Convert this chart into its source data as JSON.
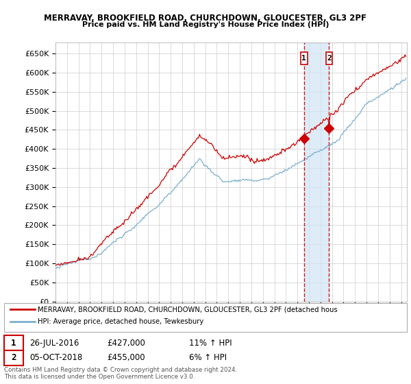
{
  "title": "MERRAVAY, BROOKFIELD ROAD, CHURCHDOWN, GLOUCESTER, GL3 2PF",
  "subtitle": "Price paid vs. HM Land Registry's House Price Index (HPI)",
  "ylim": [
    0,
    680000
  ],
  "yticks": [
    0,
    50000,
    100000,
    150000,
    200000,
    250000,
    300000,
    350000,
    400000,
    450000,
    500000,
    550000,
    600000,
    650000
  ],
  "ytick_labels": [
    "£0",
    "£50K",
    "£100K",
    "£150K",
    "£200K",
    "£250K",
    "£300K",
    "£350K",
    "£400K",
    "£450K",
    "£500K",
    "£550K",
    "£600K",
    "£650K"
  ],
  "xlim_start": 1995.0,
  "xlim_end": 2025.5,
  "sale1_date": 2016.57,
  "sale1_price": 427000,
  "sale1_label": "1",
  "sale2_date": 2018.75,
  "sale2_price": 455000,
  "sale2_label": "2",
  "hpi_color": "#7aaed0",
  "price_color": "#cc0000",
  "vline_color": "#cc0000",
  "shade_color": "#d0e4f5",
  "legend_label_price": "MERRAVAY, BROOKFIELD ROAD, CHURCHDOWN, GLOUCESTER, GL3 2PF (detached hous",
  "legend_label_hpi": "HPI: Average price, detached house, Tewkesbury",
  "annotation1_date": "26-JUL-2016",
  "annotation1_price": "£427,000",
  "annotation1_hpi": "11% ↑ HPI",
  "annotation2_date": "05-OCT-2018",
  "annotation2_price": "£455,000",
  "annotation2_hpi": "6% ↑ HPI",
  "footer": "Contains HM Land Registry data © Crown copyright and database right 2024.\nThis data is licensed under the Open Government Licence v3.0.",
  "background_color": "#ffffff",
  "grid_color": "#cccccc"
}
